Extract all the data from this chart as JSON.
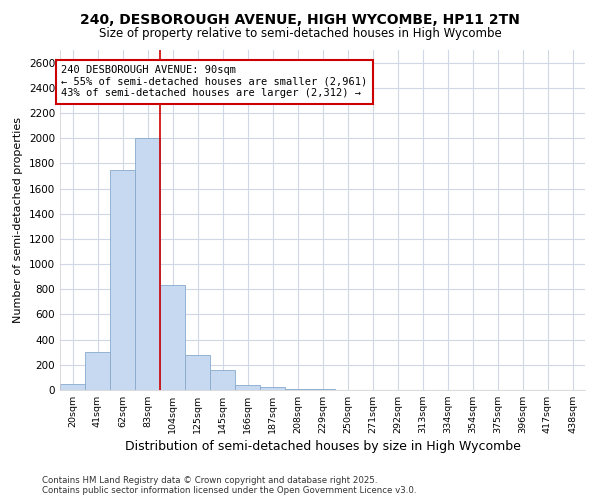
{
  "title_line1": "240, DESBOROUGH AVENUE, HIGH WYCOMBE, HP11 2TN",
  "title_line2": "Size of property relative to semi-detached houses in High Wycombe",
  "xlabel": "Distribution of semi-detached houses by size in High Wycombe",
  "ylabel": "Number of semi-detached properties",
  "categories": [
    "20sqm",
    "41sqm",
    "62sqm",
    "83sqm",
    "104sqm",
    "125sqm",
    "145sqm",
    "166sqm",
    "187sqm",
    "208sqm",
    "229sqm",
    "250sqm",
    "271sqm",
    "292sqm",
    "313sqm",
    "334sqm",
    "354sqm",
    "375sqm",
    "396sqm",
    "417sqm",
    "438sqm"
  ],
  "values": [
    50,
    300,
    1750,
    2000,
    830,
    280,
    155,
    40,
    20,
    10,
    5,
    3,
    2,
    1,
    1,
    0,
    0,
    0,
    0,
    0,
    0
  ],
  "bar_color": "#c6d9f0",
  "bar_edge_color": "#88aacc",
  "subject_bin_index": 3,
  "annotation_line1": "240 DESBOROUGH AVENUE: 90sqm",
  "annotation_line2": "← 55% of semi-detached houses are smaller (2,961)",
  "annotation_line3": "43% of semi-detached houses are larger (2,312) →",
  "vline_color": "#cc0000",
  "annotation_box_color": "#cc0000",
  "ylim": [
    0,
    2700
  ],
  "yticks": [
    0,
    200,
    400,
    600,
    800,
    1000,
    1200,
    1400,
    1600,
    1800,
    2000,
    2200,
    2400,
    2600
  ],
  "background_color": "#ffffff",
  "plot_bg_color": "#ffffff",
  "grid_color": "#d0d8e8",
  "footer_line1": "Contains HM Land Registry data © Crown copyright and database right 2025.",
  "footer_line2": "Contains public sector information licensed under the Open Government Licence v3.0."
}
